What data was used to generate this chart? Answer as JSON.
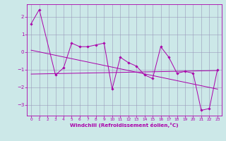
{
  "xlabel": "Windchill (Refroidissement éolien,°C)",
  "x": [
    0,
    1,
    2,
    3,
    4,
    5,
    6,
    7,
    8,
    9,
    10,
    11,
    12,
    13,
    14,
    15,
    16,
    17,
    18,
    19,
    20,
    21,
    22,
    23
  ],
  "y_main": [
    1.6,
    2.4,
    null,
    -1.3,
    -0.9,
    0.5,
    0.3,
    0.3,
    0.4,
    0.5,
    -2.1,
    -0.3,
    -0.6,
    -0.8,
    -1.3,
    -1.5,
    0.3,
    -0.3,
    -1.2,
    -1.1,
    -1.2,
    -3.3,
    -3.2,
    -1.0
  ],
  "y_trend1_x": [
    0,
    23
  ],
  "y_trend1_y": [
    0.1,
    -2.1
  ],
  "y_trend2_x": [
    0,
    23
  ],
  "y_trend2_y": [
    -1.25,
    -1.05
  ],
  "bg_color": "#cce8e8",
  "line_color": "#aa00aa",
  "grid_color": "#9999bb",
  "ylim": [
    -3.6,
    2.7
  ],
  "yticks": [
    -3,
    -2,
    -1,
    0,
    1,
    2
  ],
  "xticks": [
    0,
    1,
    2,
    3,
    4,
    5,
    6,
    7,
    8,
    9,
    10,
    11,
    12,
    13,
    14,
    15,
    16,
    17,
    18,
    19,
    20,
    21,
    22,
    23
  ]
}
